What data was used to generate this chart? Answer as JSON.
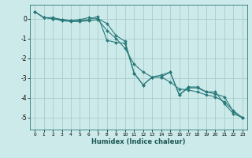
{
  "xlabel": "Humidex (Indice chaleur)",
  "ylabel": "",
  "background_color": "#cceaea",
  "grid_color": "#aacccc",
  "line_color": "#2a7a7a",
  "xlim": [
    -0.5,
    23.5
  ],
  "ylim": [
    -5.6,
    0.7
  ],
  "xticks": [
    0,
    1,
    2,
    3,
    4,
    5,
    6,
    7,
    8,
    9,
    10,
    11,
    12,
    13,
    14,
    15,
    16,
    17,
    18,
    19,
    20,
    21,
    22,
    23
  ],
  "yticks": [
    0,
    -1,
    -2,
    -3,
    -4,
    -5
  ],
  "line1_x": [
    0,
    1,
    2,
    3,
    4,
    5,
    6,
    7,
    8,
    9,
    10,
    11,
    12,
    13,
    14,
    15,
    16,
    17,
    18,
    19,
    20,
    21,
    22,
    23
  ],
  "line1_y": [
    0.35,
    0.05,
    0.05,
    -0.05,
    -0.1,
    -0.1,
    -0.05,
    0.12,
    -1.1,
    -1.2,
    -1.25,
    -2.75,
    -3.35,
    -2.95,
    -2.95,
    -2.7,
    -3.85,
    -3.5,
    -3.5,
    -3.7,
    -3.7,
    -4.3,
    -4.8,
    -5.0
  ],
  "line2_x": [
    0,
    1,
    2,
    3,
    4,
    5,
    6,
    7,
    8,
    9,
    10,
    11,
    12,
    13,
    14,
    15,
    16,
    17,
    18,
    19,
    20,
    21,
    22,
    23
  ],
  "line2_y": [
    0.35,
    0.05,
    0.0,
    -0.05,
    -0.1,
    -0.05,
    0.05,
    0.0,
    -0.25,
    -0.85,
    -1.15,
    -2.75,
    -3.35,
    -2.95,
    -2.85,
    -2.7,
    -3.85,
    -3.45,
    -3.45,
    -3.7,
    -3.8,
    -3.95,
    -4.7,
    -5.0
  ],
  "line3_x": [
    0,
    1,
    2,
    3,
    4,
    5,
    6,
    7,
    8,
    9,
    10,
    11,
    12,
    13,
    14,
    15,
    16,
    17,
    18,
    19,
    20,
    21,
    22,
    23
  ],
  "line3_y": [
    0.35,
    0.05,
    -0.0,
    -0.1,
    -0.15,
    -0.15,
    -0.1,
    -0.05,
    -0.6,
    -1.0,
    -1.5,
    -2.3,
    -2.7,
    -2.95,
    -2.95,
    -3.2,
    -3.55,
    -3.6,
    -3.7,
    -3.85,
    -3.95,
    -4.2,
    -4.65,
    -5.0
  ]
}
